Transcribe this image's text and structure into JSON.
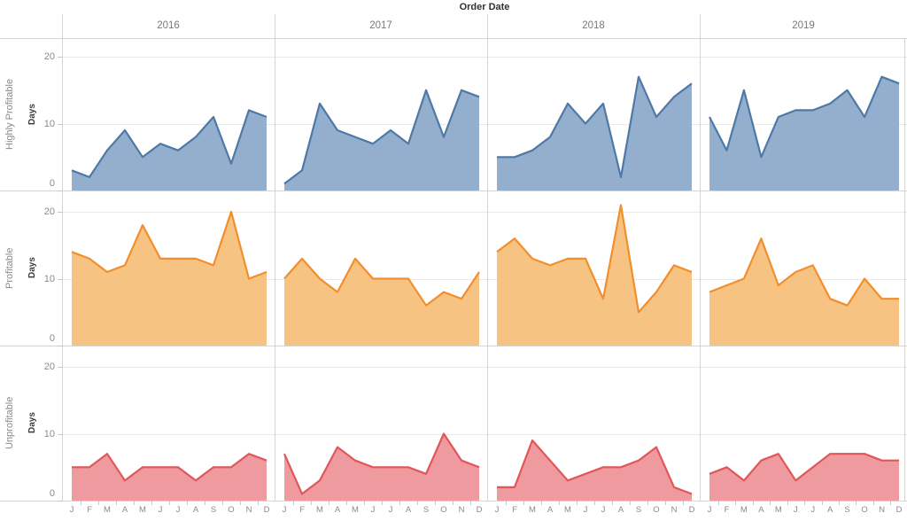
{
  "title": "Order Date",
  "column_headers": [
    "2016",
    "2017",
    "2018",
    "2019"
  ],
  "row_headers": [
    {
      "category": "Highly Profitable",
      "axis_label": "Days"
    },
    {
      "category": "Profitable",
      "axis_label": "Days"
    },
    {
      "category": "Unprofitable",
      "axis_label": "Days"
    }
  ],
  "y_axis": {
    "ticks": [
      "20",
      "10",
      "0"
    ]
  },
  "x_axis": {
    "month_labels": [
      "J",
      "F",
      "M",
      "A",
      "M",
      "J",
      "J",
      "A",
      "S",
      "O",
      "N",
      "D"
    ]
  },
  "chart_data": [
    {
      "type": "area",
      "title": "Highly Profitable",
      "xlabel": "Order Date",
      "ylabel": "Days",
      "x": [
        "J",
        "F",
        "M",
        "A",
        "M",
        "J",
        "J",
        "A",
        "S",
        "O",
        "N",
        "D"
      ],
      "ylim": [
        0,
        23
      ],
      "grid": true,
      "legend": "none",
      "line_color": "#4e79a7",
      "fill_color": "#94afce",
      "series": [
        {
          "name": "2016",
          "values": [
            3,
            2,
            6,
            9,
            5,
            7,
            6,
            8,
            11,
            4,
            12,
            11
          ]
        },
        {
          "name": "2017",
          "values": [
            1,
            3,
            13,
            9,
            8,
            7,
            9,
            7,
            15,
            8,
            15,
            14
          ]
        },
        {
          "name": "2018",
          "values": [
            5,
            5,
            6,
            8,
            13,
            10,
            13,
            2,
            17,
            11,
            14,
            16
          ]
        },
        {
          "name": "2019",
          "values": [
            11,
            6,
            15,
            5,
            11,
            12,
            12,
            13,
            15,
            11,
            17,
            16
          ]
        }
      ]
    },
    {
      "type": "area",
      "title": "Profitable",
      "xlabel": "Order Date",
      "ylabel": "Days",
      "x": [
        "J",
        "F",
        "M",
        "A",
        "M",
        "J",
        "J",
        "A",
        "S",
        "O",
        "N",
        "D"
      ],
      "ylim": [
        0,
        23
      ],
      "grid": true,
      "legend": "none",
      "line_color": "#f28e2b",
      "fill_color": "#f7c383",
      "series": [
        {
          "name": "2016",
          "values": [
            14,
            13,
            11,
            12,
            18,
            13,
            13,
            13,
            12,
            20,
            10,
            11
          ]
        },
        {
          "name": "2017",
          "values": [
            10,
            13,
            10,
            8,
            13,
            10,
            10,
            10,
            6,
            8,
            7,
            11
          ]
        },
        {
          "name": "2018",
          "values": [
            14,
            16,
            13,
            12,
            13,
            13,
            7,
            21,
            5,
            8,
            12,
            11
          ]
        },
        {
          "name": "2019",
          "values": [
            8,
            9,
            10,
            16,
            9,
            11,
            12,
            7,
            6,
            10,
            7,
            7
          ]
        }
      ]
    },
    {
      "type": "area",
      "title": "Unprofitable",
      "xlabel": "Order Date",
      "ylabel": "Days",
      "x": [
        "J",
        "F",
        "M",
        "A",
        "M",
        "J",
        "J",
        "A",
        "S",
        "O",
        "N",
        "D"
      ],
      "ylim": [
        0,
        23
      ],
      "grid": true,
      "legend": "none",
      "line_color": "#e15759",
      "fill_color": "#ee9a9e",
      "series": [
        {
          "name": "2016",
          "values": [
            5,
            5,
            7,
            3,
            5,
            5,
            5,
            3,
            5,
            5,
            7,
            6
          ]
        },
        {
          "name": "2017",
          "values": [
            7,
            1,
            3,
            8,
            6,
            5,
            5,
            5,
            4,
            10,
            6,
            5
          ]
        },
        {
          "name": "2018",
          "values": [
            2,
            2,
            9,
            6,
            3,
            4,
            5,
            5,
            6,
            8,
            2,
            1
          ]
        },
        {
          "name": "2019",
          "values": [
            4,
            5,
            3,
            6,
            7,
            3,
            5,
            7,
            7,
            7,
            6,
            6
          ]
        }
      ]
    }
  ]
}
